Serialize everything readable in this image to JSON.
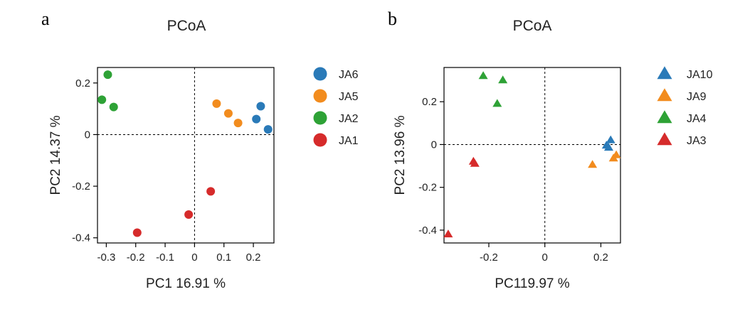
{
  "chart_data": [
    {
      "type": "scatter",
      "panel": "a",
      "title": "PCoA",
      "xlabel": "PC1 16.91 %",
      "ylabel": "PC2  14.37 %",
      "xlim": [
        -0.33,
        0.27
      ],
      "ylim": [
        -0.42,
        0.26
      ],
      "xticks": [
        "-0.3",
        "-0.2",
        "-0.1",
        "0",
        "0.1",
        "0.2"
      ],
      "xtick_values": [
        -0.3,
        -0.2,
        -0.1,
        0,
        0.1,
        0.2
      ],
      "yticks": [
        "0.2",
        "0",
        "-0.2",
        "-0.4"
      ],
      "ytick_values": [
        0.2,
        0,
        -0.2,
        -0.4
      ],
      "zero_lines": true,
      "marker": "circle",
      "legend_position": "right",
      "series": [
        {
          "name": "JA6",
          "color": "#2a7ab8",
          "points": [
            [
              0.21,
              0.06
            ],
            [
              0.225,
              0.11
            ],
            [
              0.25,
              0.02
            ]
          ]
        },
        {
          "name": "JA5",
          "color": "#f28c1e",
          "points": [
            [
              0.075,
              0.12
            ],
            [
              0.115,
              0.082
            ],
            [
              0.148,
              0.045
            ]
          ]
        },
        {
          "name": "JA2",
          "color": "#2ea236",
          "points": [
            [
              -0.315,
              0.135
            ],
            [
              -0.295,
              0.232
            ],
            [
              -0.275,
              0.107
            ]
          ]
        },
        {
          "name": "JA1",
          "color": "#d62b2b",
          "points": [
            [
              -0.195,
              -0.38
            ],
            [
              -0.02,
              -0.31
            ],
            [
              0.055,
              -0.22
            ]
          ]
        }
      ]
    },
    {
      "type": "scatter",
      "panel": "b",
      "title": "PCoA",
      "xlabel": "PC119.97 %",
      "ylabel": "PC2 13.96 %",
      "xlim": [
        -0.36,
        0.27
      ],
      "ylim": [
        -0.46,
        0.36
      ],
      "xticks": [
        "-0.2",
        "0",
        "0.2"
      ],
      "xtick_values": [
        -0.2,
        0,
        0.2
      ],
      "yticks": [
        "0.2",
        "0",
        "-0.2",
        "-0.4"
      ],
      "ytick_values": [
        0.2,
        0,
        -0.2,
        -0.4
      ],
      "zero_lines": true,
      "marker": "triangle",
      "legend_position": "right",
      "series": [
        {
          "name": "JA10",
          "color": "#2a7ab8",
          "points": [
            [
              0.22,
              -0.005
            ],
            [
              0.235,
              0.02
            ],
            [
              0.228,
              -0.015
            ]
          ]
        },
        {
          "name": "JA9",
          "color": "#f28c1e",
          "points": [
            [
              0.17,
              -0.095
            ],
            [
              0.245,
              -0.065
            ],
            [
              0.255,
              -0.05
            ]
          ]
        },
        {
          "name": "JA4",
          "color": "#2ea236",
          "points": [
            [
              -0.22,
              0.32
            ],
            [
              -0.15,
              0.3
            ],
            [
              -0.17,
              0.19
            ]
          ]
        },
        {
          "name": "JA3",
          "color": "#d62b2b",
          "points": [
            [
              -0.345,
              -0.42
            ],
            [
              -0.255,
              -0.08
            ],
            [
              -0.25,
              -0.09
            ]
          ]
        }
      ]
    }
  ]
}
